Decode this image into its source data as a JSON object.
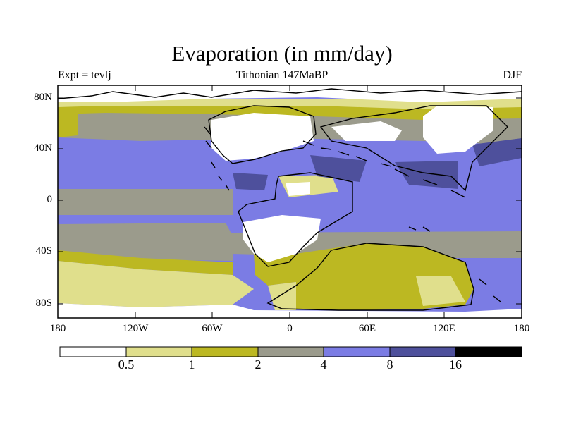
{
  "title": "Evaporation (in mm/day)",
  "subtitle_left": "Expt = tevlj",
  "subtitle_center": "Tithonian 147MaBP",
  "subtitle_right": "DJF",
  "y_ticks": [
    "80N",
    "40N",
    "0",
    "40S",
    "80S"
  ],
  "x_ticks": [
    "180",
    "120W",
    "60W",
    "0",
    "60E",
    "120E",
    "180"
  ],
  "colorbar": {
    "labels": [
      "0.5",
      "1",
      "2",
      "4",
      "8",
      "16"
    ],
    "colors": [
      "#ffffff",
      "#e0df8c",
      "#bcb822",
      "#9b9b8c",
      "#7b7ce4",
      "#4e509c",
      "#000000"
    ]
  },
  "colors": {
    "white": "#ffffff",
    "pale": "#e0df8c",
    "olive": "#bcb822",
    "grey": "#9b9b8c",
    "blue": "#7b7ce4",
    "dark": "#4e509c"
  }
}
